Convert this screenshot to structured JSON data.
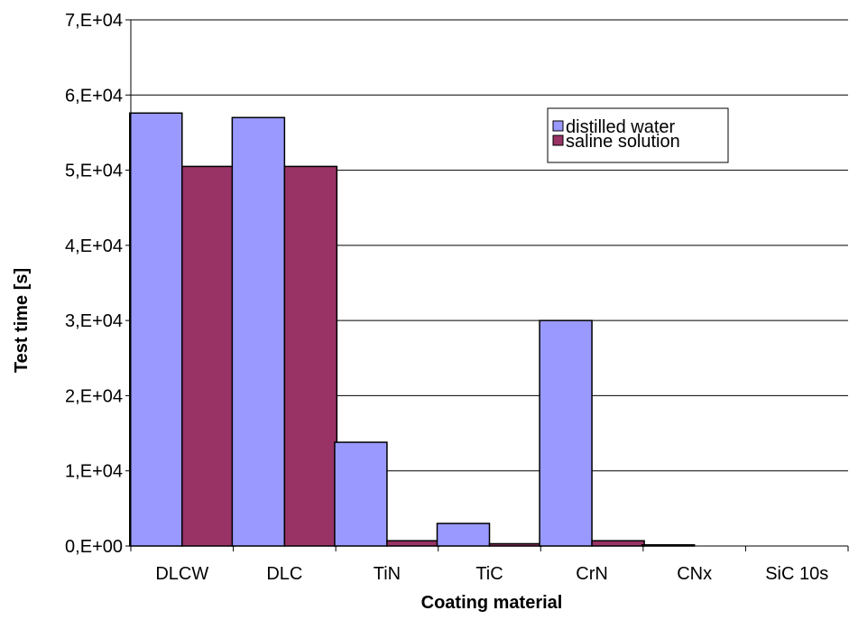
{
  "chart_data": {
    "type": "bar",
    "categories": [
      "DLCW",
      "DLC",
      "TiN",
      "TiC",
      "CrN",
      "CNx",
      "SiC 10s"
    ],
    "series": [
      {
        "name": "distilled water",
        "color": "#9999FF",
        "values": [
          57600,
          57000,
          13800,
          3000,
          30000,
          150,
          0
        ]
      },
      {
        "name": "saline solution",
        "color": "#993366",
        "values": [
          50500,
          50500,
          700,
          300,
          700,
          0,
          0
        ]
      }
    ],
    "xlabel": "Coating material",
    "ylabel": "Test time [s]",
    "ylim": [
      0,
      70000
    ],
    "yticks": [
      0,
      10000,
      20000,
      30000,
      40000,
      50000,
      60000,
      70000
    ],
    "ytick_labels": [
      "0,E+00",
      "1,E+04",
      "2,E+04",
      "3,E+04",
      "4,E+04",
      "5,E+04",
      "6,E+04",
      "7,E+04"
    ],
    "grid": true,
    "legend_position": "top-right"
  }
}
